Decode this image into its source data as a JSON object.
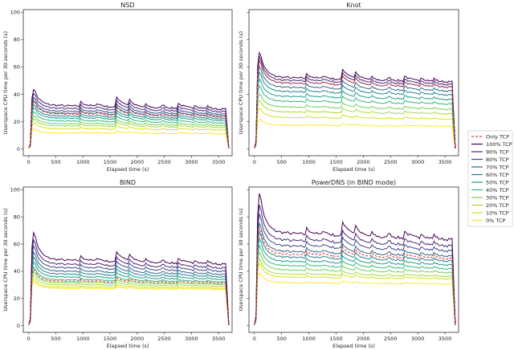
{
  "chart_data": {
    "type": "line",
    "figure": "2x2 subplot grid with shared legend on right",
    "xlabel": "Elapsed time (s)",
    "ylabel": "Userspace CPU time per 30 seconds (s)",
    "xlim": [
      -100,
      3750
    ],
    "ylim": [
      -5,
      102
    ],
    "xticks": [
      0,
      500,
      1000,
      1500,
      2000,
      2500,
      3000,
      3500
    ],
    "yticks": [
      0,
      20,
      40,
      60,
      80,
      100
    ],
    "grid": false,
    "legend": {
      "placement": "right",
      "entries": [
        "Only TCP",
        "100% TCP",
        "90% TCP",
        "80% TCP",
        "70% TCP",
        "60% TCP",
        "50% TCP",
        "40% TCP",
        "30% TCP",
        "20% TCP",
        "10% TCP",
        "0% TCP"
      ],
      "colors": [
        "#e8403a",
        "#440154",
        "#482878",
        "#3e4989",
        "#31688e",
        "#26828e",
        "#1f9e89",
        "#35b779",
        "#6ece58",
        "#a5db36",
        "#d2e21b",
        "#fde725"
      ],
      "styles": [
        "dashed",
        "solid",
        "solid",
        "solid",
        "solid",
        "solid",
        "solid",
        "solid",
        "solid",
        "solid",
        "solid",
        "solid"
      ]
    },
    "series_note": "Each series is a time series sampled every 30 s from 0 to ~3700 s; steady-state levels (plateau after startup) per panel listed below in series order Only TCP, 100%..0% TCP.",
    "panels": [
      {
        "title": "NSD",
        "show_ytick_labels": true,
        "peak_100": 44,
        "steady_levels": [
          25,
          31,
          29,
          27,
          25.5,
          23.5,
          22,
          20,
          18,
          16.5,
          14.5,
          11.5
        ]
      },
      {
        "title": "Knot",
        "show_ytick_labels": false,
        "peak_100": 71,
        "steady_levels": [
          47,
          51,
          49,
          47,
          44,
          41,
          37.5,
          34,
          30,
          26.5,
          22.5,
          17
        ]
      },
      {
        "title": "BIND",
        "show_ytick_labels": true,
        "peak_100": 69,
        "steady_levels": [
          32,
          47,
          44,
          41.5,
          39,
          37,
          35,
          33,
          31,
          29.5,
          28,
          27
        ]
      },
      {
        "title": "PowerDNS (in BIND mode)",
        "show_ytick_labels": false,
        "peak_100": 98,
        "steady_levels": [
          51,
          66,
          61,
          57,
          53,
          49,
          46,
          43,
          40,
          37,
          35,
          31
        ]
      }
    ]
  }
}
